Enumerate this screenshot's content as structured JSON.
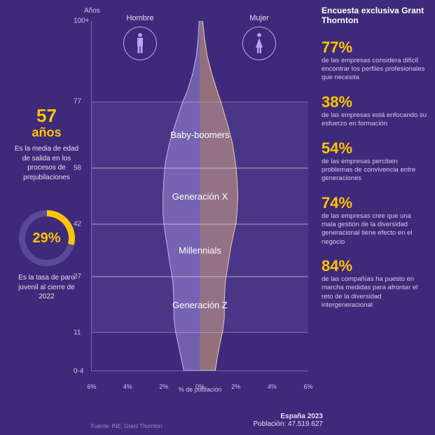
{
  "colors": {
    "bg": "#3e2a7a",
    "accent": "#ffc400",
    "grid": "#7a6ab5",
    "text_muted": "#cfc6ea",
    "band_fill": "rgba(150,130,210,.14)",
    "pyr_male": "#9b8ad6",
    "pyr_male_edge": "#c9bdf2",
    "pyr_female": "#d8a978",
    "pyr_female_edge": "#f0d4b0",
    "ring": "#b7a6f0"
  },
  "axis": {
    "title": "Años",
    "x_title": "% de población",
    "x_ticks": [
      "6%",
      "4%",
      "2%",
      "0%",
      "2%",
      "4%",
      "6%"
    ],
    "x_pos_pct": [
      0,
      16.6,
      33.3,
      50,
      66.6,
      83.3,
      100
    ],
    "y_ticks": [
      {
        "label": "100+",
        "age": 100
      },
      {
        "label": "77",
        "age": 77
      },
      {
        "label": "58",
        "age": 58
      },
      {
        "label": "42",
        "age": 42
      },
      {
        "label": "27",
        "age": 27
      },
      {
        "label": "11",
        "age": 11
      },
      {
        "label": "0-4",
        "age": 0
      }
    ]
  },
  "headers": {
    "male": "Hombre",
    "female": "Mujer"
  },
  "bands": [
    {
      "label": "Baby-boomers",
      "from": 58,
      "to": 77
    },
    {
      "label": "Generación X",
      "from": 42,
      "to": 58
    },
    {
      "label": "Millennials",
      "from": 27,
      "to": 42
    },
    {
      "label": "Generación Z",
      "from": 11,
      "to": 27
    }
  ],
  "pyramid": {
    "max_pct": 6,
    "male": [
      {
        "age": 100,
        "pct": 0.05
      },
      {
        "age": 95,
        "pct": 0.1
      },
      {
        "age": 90,
        "pct": 0.2
      },
      {
        "age": 85,
        "pct": 0.4
      },
      {
        "age": 80,
        "pct": 0.7
      },
      {
        "age": 77,
        "pct": 0.95
      },
      {
        "age": 70,
        "pct": 1.4
      },
      {
        "age": 65,
        "pct": 1.7
      },
      {
        "age": 60,
        "pct": 1.9
      },
      {
        "age": 58,
        "pct": 1.95
      },
      {
        "age": 55,
        "pct": 2.0
      },
      {
        "age": 50,
        "pct": 2.05
      },
      {
        "age": 45,
        "pct": 2.05
      },
      {
        "age": 42,
        "pct": 2.0
      },
      {
        "age": 40,
        "pct": 1.95
      },
      {
        "age": 35,
        "pct": 1.8
      },
      {
        "age": 30,
        "pct": 1.65
      },
      {
        "age": 27,
        "pct": 1.55
      },
      {
        "age": 25,
        "pct": 1.5
      },
      {
        "age": 20,
        "pct": 1.45
      },
      {
        "age": 15,
        "pct": 1.45
      },
      {
        "age": 11,
        "pct": 1.35
      },
      {
        "age": 10,
        "pct": 1.3
      },
      {
        "age": 5,
        "pct": 1.1
      },
      {
        "age": 0,
        "pct": 0.9
      }
    ],
    "female": [
      {
        "age": 100,
        "pct": 0.15
      },
      {
        "age": 95,
        "pct": 0.25
      },
      {
        "age": 90,
        "pct": 0.4
      },
      {
        "age": 85,
        "pct": 0.65
      },
      {
        "age": 80,
        "pct": 0.95
      },
      {
        "age": 77,
        "pct": 1.15
      },
      {
        "age": 70,
        "pct": 1.55
      },
      {
        "age": 65,
        "pct": 1.8
      },
      {
        "age": 60,
        "pct": 1.95
      },
      {
        "age": 58,
        "pct": 2.0
      },
      {
        "age": 55,
        "pct": 2.05
      },
      {
        "age": 50,
        "pct": 2.1
      },
      {
        "age": 45,
        "pct": 2.05
      },
      {
        "age": 42,
        "pct": 2.0
      },
      {
        "age": 40,
        "pct": 1.9
      },
      {
        "age": 35,
        "pct": 1.7
      },
      {
        "age": 30,
        "pct": 1.55
      },
      {
        "age": 27,
        "pct": 1.45
      },
      {
        "age": 25,
        "pct": 1.4
      },
      {
        "age": 20,
        "pct": 1.35
      },
      {
        "age": 15,
        "pct": 1.35
      },
      {
        "age": 11,
        "pct": 1.25
      },
      {
        "age": 10,
        "pct": 1.2
      },
      {
        "age": 5,
        "pct": 1.0
      },
      {
        "age": 0,
        "pct": 0.85
      }
    ]
  },
  "left": {
    "stat1": {
      "value": "57",
      "unit": "años",
      "desc": "Es la media de edad de salida en los procesos de prejubilaciones"
    },
    "donut": {
      "pct": 29,
      "label": "29%",
      "desc": "Es la tasa de paro juvenil al cierre de 2022",
      "track": "#5a4a95",
      "fill": "#ffc400"
    }
  },
  "right": {
    "title": "Encuesta exclusiva Grant Thornton",
    "stats": [
      {
        "num": "77%",
        "desc": "de las empresas considera difícil encontrar los perfiles profesionales que necesita"
      },
      {
        "num": "38%",
        "desc": "de las empresas está enfocando su esfuerzo en formación"
      },
      {
        "num": "54%",
        "desc": "de las empresas perciben problemas de convivencia entre generaciones"
      },
      {
        "num": "74%",
        "desc": "de las empresas cree que una mala gestión de la diversidad generacional tiene efecto en el negocio"
      },
      {
        "num": "84%",
        "desc": "de las compañías ha puesto en marcha medidas para afrontar el reto de la diversidad intergeneracional"
      }
    ]
  },
  "footer": {
    "line1": "España 2023",
    "line2": "Población: 47.519.627"
  },
  "source": "Fuente: INE, Grant Thornton"
}
